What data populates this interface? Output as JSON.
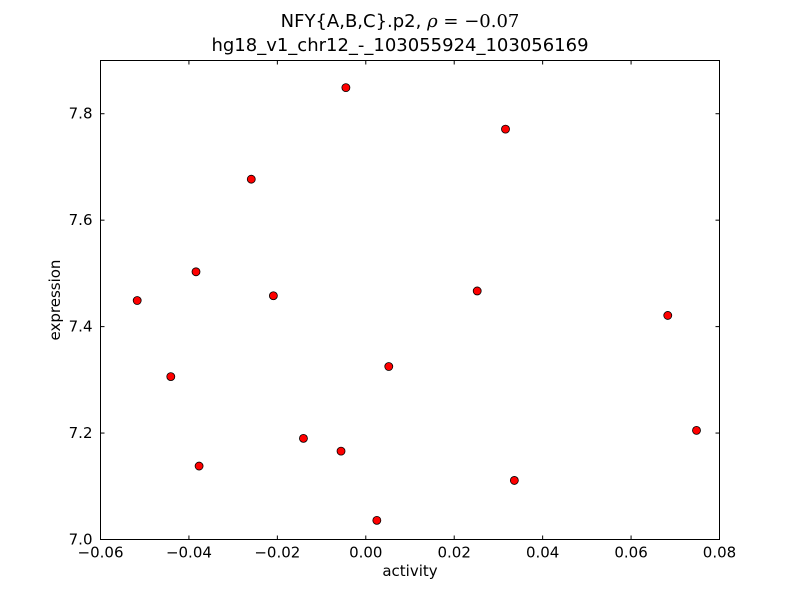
{
  "chart_data": {
    "type": "scatter",
    "title_prefix": "NFY{A,B,C}.p2, ",
    "title_rho_symbol": "ρ",
    "title_rho_value": " = −0.07",
    "title_line2": "hg18_v1_chr12_-_103055924_103056169",
    "xlabel": "activity",
    "ylabel": "expression",
    "xlim": [
      -0.06,
      0.08
    ],
    "ylim": [
      7.0,
      7.9
    ],
    "xticks": [
      -0.06,
      -0.04,
      -0.02,
      0.0,
      0.02,
      0.04,
      0.06,
      0.08
    ],
    "xtick_labels": [
      "−0.06",
      "−0.04",
      "−0.02",
      "0.00",
      "0.02",
      "0.04",
      "0.06",
      "0.08"
    ],
    "yticks": [
      7.0,
      7.2,
      7.4,
      7.6,
      7.8
    ],
    "ytick_labels": [
      "7.0",
      "7.2",
      "7.4",
      "7.6",
      "7.8"
    ],
    "grid": false,
    "marker_color": "#ff0000",
    "marker_edge_color": "#000000",
    "points": [
      {
        "x": -0.0517,
        "y": 7.449
      },
      {
        "x": -0.0441,
        "y": 7.306
      },
      {
        "x": -0.0384,
        "y": 7.503
      },
      {
        "x": -0.0377,
        "y": 7.138
      },
      {
        "x": -0.0259,
        "y": 7.677
      },
      {
        "x": -0.0209,
        "y": 7.458
      },
      {
        "x": -0.0141,
        "y": 7.19
      },
      {
        "x": -0.0056,
        "y": 7.166
      },
      {
        "x": -0.0045,
        "y": 7.849
      },
      {
        "x": 0.0025,
        "y": 7.036
      },
      {
        "x": 0.0052,
        "y": 7.325
      },
      {
        "x": 0.0252,
        "y": 7.467
      },
      {
        "x": 0.0316,
        "y": 7.771
      },
      {
        "x": 0.0336,
        "y": 7.111
      },
      {
        "x": 0.0683,
        "y": 7.421
      },
      {
        "x": 0.0748,
        "y": 7.205
      }
    ]
  }
}
